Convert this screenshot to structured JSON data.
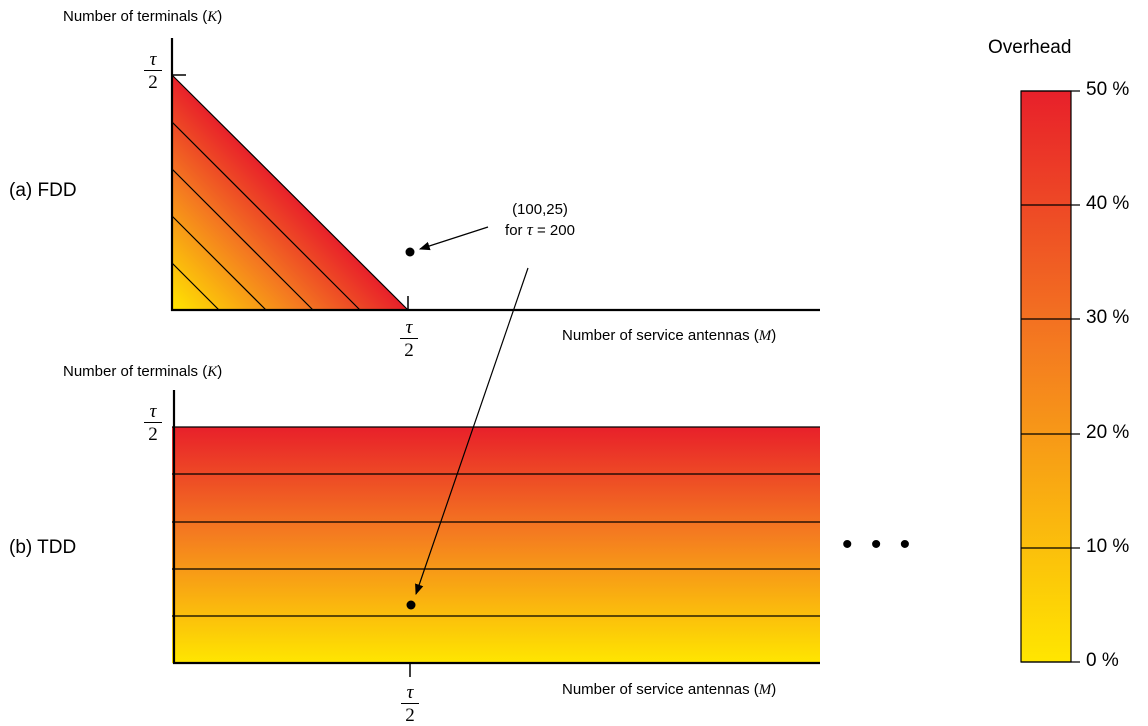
{
  "panel_a": {
    "label": "(a) FDD",
    "y_axis_title": "Number of terminals",
    "y_axis_var": "K",
    "x_axis_title": "Number of service antennas",
    "x_axis_var": "M",
    "y_tick": {
      "num": "τ",
      "den": "2"
    },
    "x_tick": {
      "num": "τ",
      "den": "2"
    }
  },
  "panel_b": {
    "label": "(b) TDD",
    "y_axis_title": "Number of terminals",
    "y_axis_var": "K",
    "x_axis_title": "Number of service antennas",
    "x_axis_var": "M",
    "y_tick": {
      "num": "τ",
      "den": "2"
    },
    "x_tick": {
      "num": "τ",
      "den": "2"
    },
    "continuation": "• • •"
  },
  "annotation": {
    "point": "(100,25)",
    "condition_prefix": "for",
    "condition_var": "τ",
    "condition_value": "= 200"
  },
  "colorbar": {
    "title": "Overhead",
    "ticks": [
      "50 %",
      "40 %",
      "30 %",
      "20 %",
      "10 %",
      "0 %"
    ],
    "tick_fractions": [
      0.5,
      0.4,
      0.3,
      0.2,
      0.1,
      0.0
    ],
    "color_low": "#ffe600",
    "color_mid": "#f47b20",
    "color_high": "#e8202a"
  }
}
